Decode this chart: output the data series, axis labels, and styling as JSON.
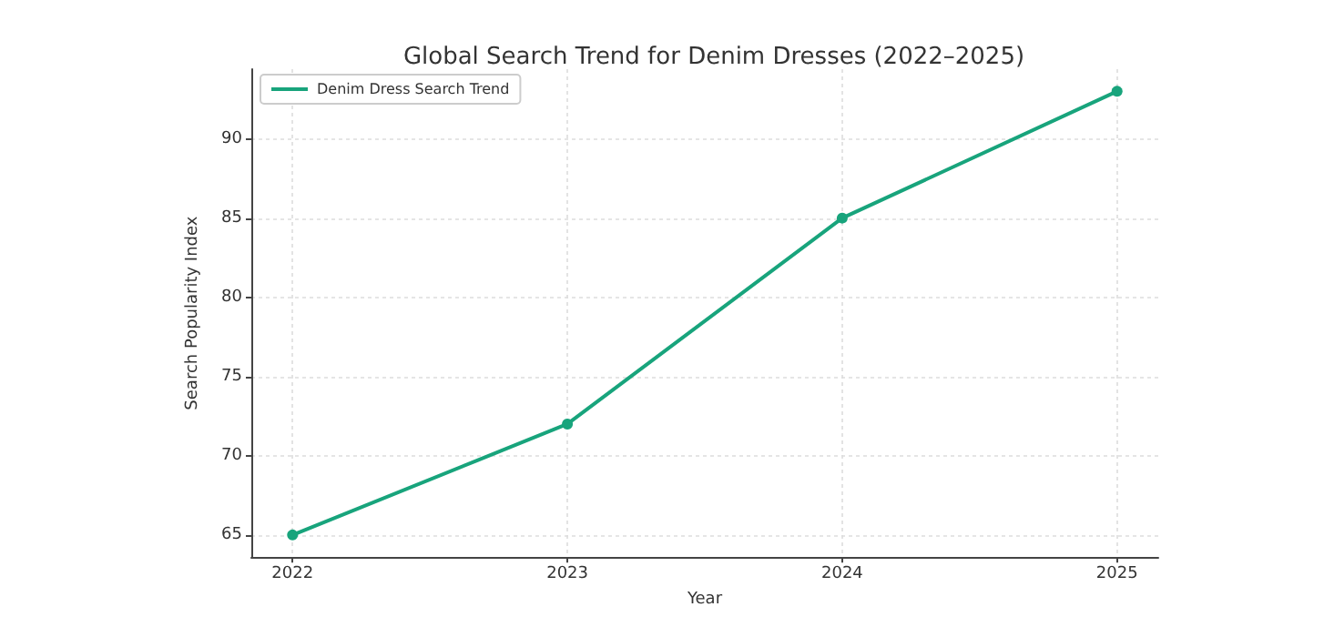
{
  "chart_data": {
    "type": "line",
    "title": "Global Search Trend for Denim Dresses (2022–2025)",
    "xlabel": "Year",
    "ylabel": "Search Popularity Index",
    "x": [
      2022,
      2023,
      2024,
      2025
    ],
    "series": [
      {
        "name": "Denim Dress Search Trend",
        "color": "#18a47c",
        "values": [
          65,
          72,
          85,
          93
        ]
      }
    ],
    "xlim": [
      2021.85,
      2025.15
    ],
    "xticks": [
      2022,
      2023,
      2024,
      2025
    ],
    "ylim": [
      63.6,
      94.4
    ],
    "yticks": [
      65,
      70,
      75,
      80,
      85,
      90
    ],
    "grid": true,
    "legend": "top left",
    "marker": "circle",
    "line_style": "solid"
  }
}
